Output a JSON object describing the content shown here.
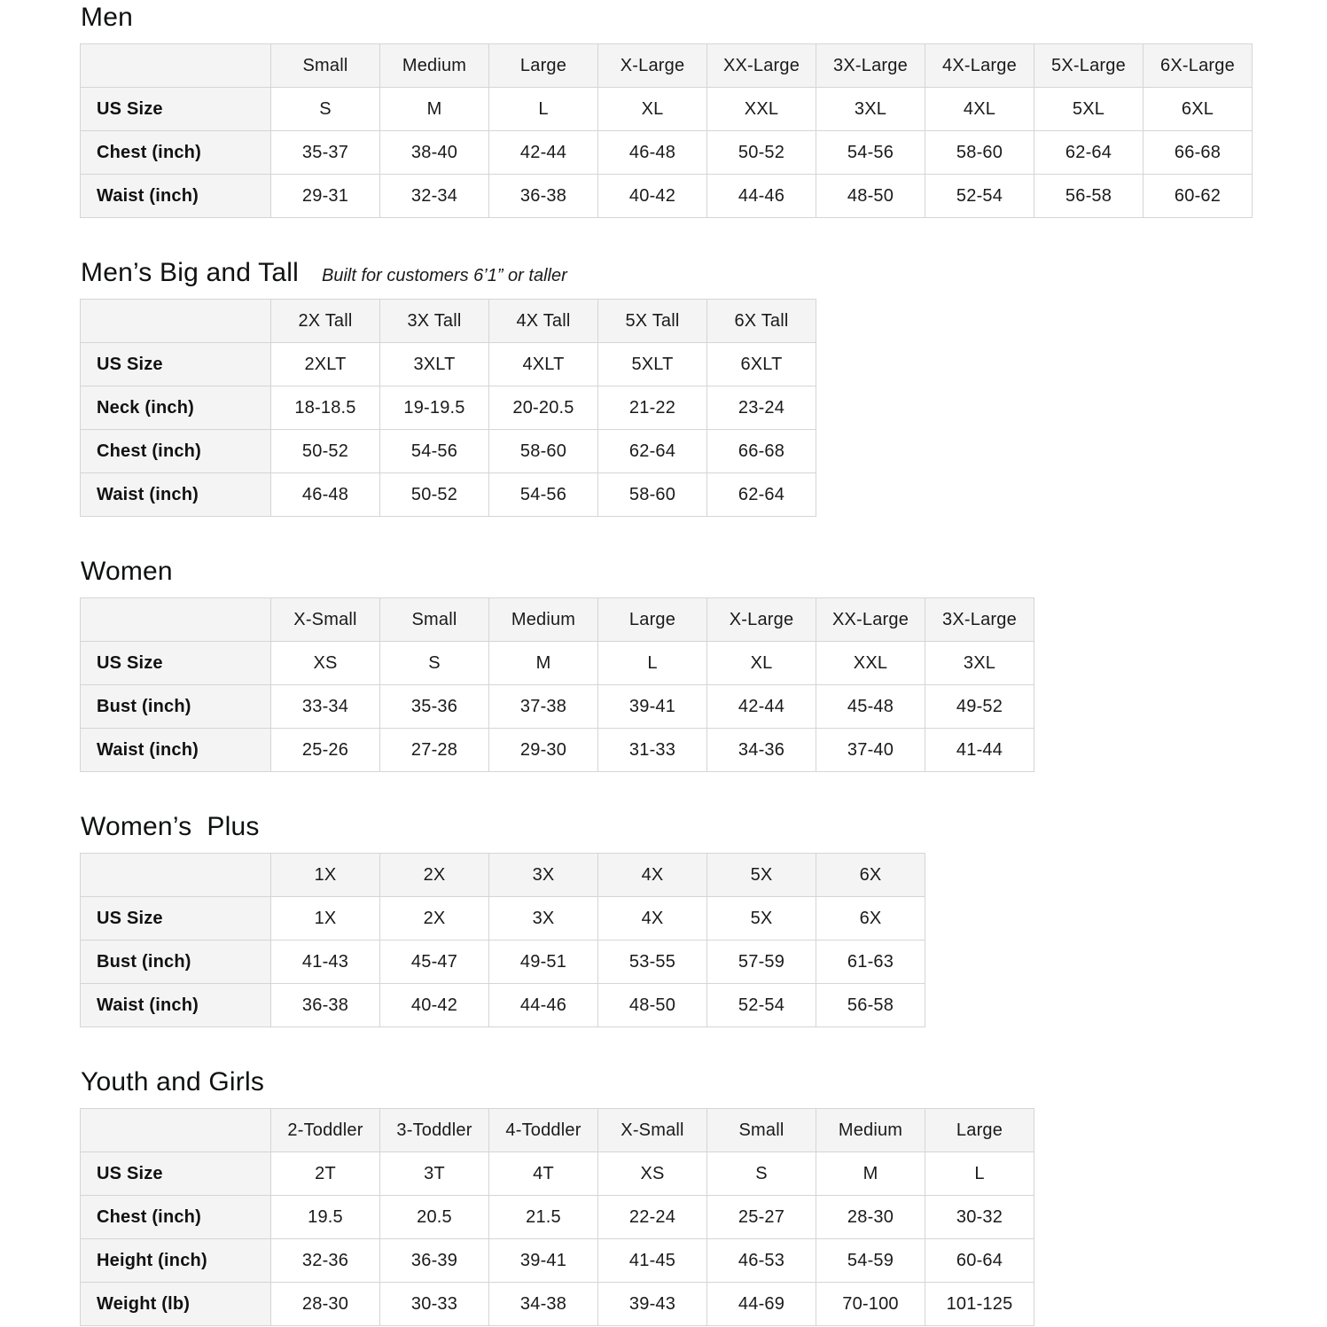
{
  "page": {
    "background": "#ffffff",
    "text_color": "#1a1a1a",
    "title_color": "#0f1111",
    "header_cell_bg": "#f4f4f4",
    "border_color": "#d5d5d5"
  },
  "chart_data": [
    {
      "type": "table",
      "title": "Men",
      "subtitle": "",
      "columns": [
        "Small",
        "Medium",
        "Large",
        "X-Large",
        "XX-Large",
        "3X-Large",
        "4X-Large",
        "5X-Large",
        "6X-Large"
      ],
      "rows": [
        {
          "label": "US Size",
          "values": [
            "S",
            "M",
            "L",
            "XL",
            "XXL",
            "3XL",
            "4XL",
            "5XL",
            "6XL"
          ]
        },
        {
          "label": "Chest (inch)",
          "values": [
            "35-37",
            "38-40",
            "42-44",
            "46-48",
            "50-52",
            "54-56",
            "58-60",
            "62-64",
            "66-68"
          ]
        },
        {
          "label": "Waist (inch)",
          "values": [
            "29-31",
            "32-34",
            "36-38",
            "40-42",
            "44-46",
            "48-50",
            "52-54",
            "56-58",
            "60-62"
          ]
        }
      ]
    },
    {
      "type": "table",
      "title": "Men’s Big and Tall",
      "subtitle": "Built for customers 6’1” or taller",
      "columns": [
        "2X Tall",
        "3X Tall",
        "4X Tall",
        "5X Tall",
        "6X Tall"
      ],
      "rows": [
        {
          "label": "US Size",
          "values": [
            "2XLT",
            "3XLT",
            "4XLT",
            "5XLT",
            "6XLT"
          ]
        },
        {
          "label": "Neck (inch)",
          "values": [
            "18-18.5",
            "19-19.5",
            "20-20.5",
            "21-22",
            "23-24"
          ]
        },
        {
          "label": "Chest (inch)",
          "values": [
            "50-52",
            "54-56",
            "58-60",
            "62-64",
            "66-68"
          ]
        },
        {
          "label": "Waist (inch)",
          "values": [
            "46-48",
            "50-52",
            "54-56",
            "58-60",
            "62-64"
          ]
        }
      ]
    },
    {
      "type": "table",
      "title": "Women",
      "subtitle": "",
      "columns": [
        "X-Small",
        "Small",
        "Medium",
        "Large",
        "X-Large",
        "XX-Large",
        "3X-Large"
      ],
      "rows": [
        {
          "label": "US Size",
          "values": [
            "XS",
            "S",
            "M",
            "L",
            "XL",
            "XXL",
            "3XL"
          ]
        },
        {
          "label": "Bust (inch)",
          "values": [
            "33-34",
            "35-36",
            "37-38",
            "39-41",
            "42-44",
            "45-48",
            "49-52"
          ]
        },
        {
          "label": "Waist (inch)",
          "values": [
            "25-26",
            "27-28",
            "29-30",
            "31-33",
            "34-36",
            "37-40",
            "41-44"
          ]
        }
      ]
    },
    {
      "type": "table",
      "title": "Women’s  Plus",
      "subtitle": "",
      "columns": [
        "1X",
        "2X",
        "3X",
        "4X",
        "5X",
        "6X"
      ],
      "rows": [
        {
          "label": "US Size",
          "values": [
            "1X",
            "2X",
            "3X",
            "4X",
            "5X",
            "6X"
          ]
        },
        {
          "label": "Bust (inch)",
          "values": [
            "41-43",
            "45-47",
            "49-51",
            "53-55",
            "57-59",
            "61-63"
          ]
        },
        {
          "label": "Waist (inch)",
          "values": [
            "36-38",
            "40-42",
            "44-46",
            "48-50",
            "52-54",
            "56-58"
          ]
        }
      ]
    },
    {
      "type": "table",
      "title": "Youth and Girls",
      "subtitle": "",
      "columns": [
        "2-Toddler",
        "3-Toddler",
        "4-Toddler",
        "X-Small",
        "Small",
        "Medium",
        "Large"
      ],
      "rows": [
        {
          "label": "US Size",
          "values": [
            "2T",
            "3T",
            "4T",
            "XS",
            "S",
            "M",
            "L"
          ]
        },
        {
          "label": "Chest (inch)",
          "values": [
            "19.5",
            "20.5",
            "21.5",
            "22-24",
            "25-27",
            "28-30",
            "30-32"
          ]
        },
        {
          "label": "Height (inch)",
          "values": [
            "32-36",
            "36-39",
            "39-41",
            "41-45",
            "46-53",
            "54-59",
            "60-64"
          ]
        },
        {
          "label": "Weight (lb)",
          "values": [
            "28-30",
            "30-33",
            "34-38",
            "39-43",
            "44-69",
            "70-100",
            "101-125"
          ]
        }
      ]
    }
  ]
}
